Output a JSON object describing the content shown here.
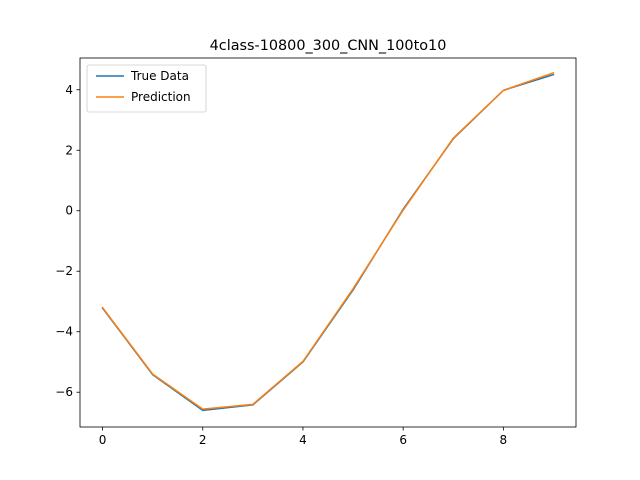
{
  "chart_data": {
    "type": "line",
    "title": "4class-10800_300_CNN_100to10",
    "xlabel": "",
    "ylabel": "",
    "xlim": [
      -0.45,
      9.45
    ],
    "ylim": [
      -7.15,
      5.05
    ],
    "x_ticks": [
      0,
      2,
      4,
      6,
      8
    ],
    "x_tick_labels": [
      "0",
      "2",
      "4",
      "6",
      "8"
    ],
    "y_ticks": [
      -6,
      -4,
      -2,
      0,
      2,
      4
    ],
    "y_tick_labels": [
      "−6",
      "−4",
      "−2",
      "0",
      "2",
      "4"
    ],
    "grid": false,
    "legend": "top-left",
    "x": [
      0,
      1,
      2,
      3,
      4,
      5,
      6,
      7,
      8,
      9
    ],
    "series": [
      {
        "name": "True Data",
        "color": "#1f77b4",
        "values": [
          -3.22,
          -5.42,
          -6.6,
          -6.42,
          -5.0,
          -2.62,
          0.05,
          2.38,
          3.98,
          4.5
        ]
      },
      {
        "name": "Prediction",
        "color": "#ff7f0e",
        "values": [
          -3.2,
          -5.4,
          -6.56,
          -6.4,
          -4.98,
          -2.58,
          0.02,
          2.4,
          3.98,
          4.56
        ]
      }
    ]
  }
}
